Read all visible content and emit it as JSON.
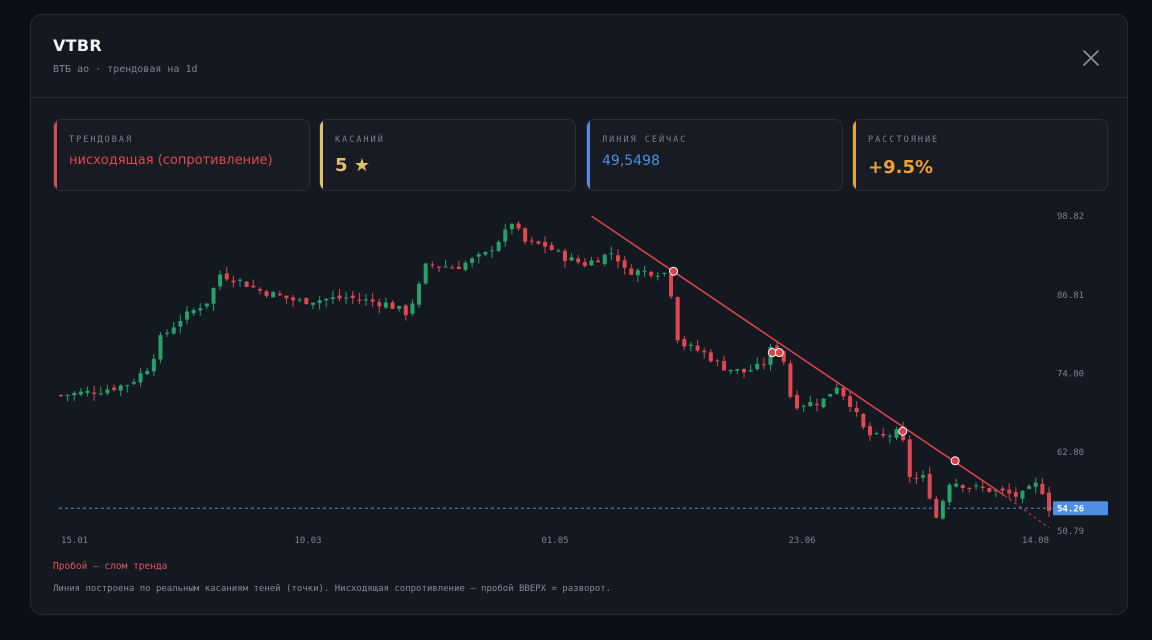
{
  "header": {
    "title": "VTBR",
    "subtitle": "ВТБ ао · трендовая на 1d"
  },
  "stats": [
    {
      "label": "ТРЕНДОВАЯ",
      "value": "нисходящая (сопротивление)",
      "color": "#e0484f"
    },
    {
      "label": "КАСАНИЙ",
      "value": "5",
      "icon": "star-icon",
      "color": "#e3c06c"
    },
    {
      "label": "ЛИНИЯ СЕЙЧАС",
      "value": "49,5498",
      "color": "#4f8fe6"
    },
    {
      "label": "РАССТОЯНИЕ",
      "value": "+9.5%",
      "color": "#f0a12c"
    }
  ],
  "chart_data": {
    "type": "candlestick",
    "y_ticks": [
      "98.82",
      "86.81",
      "74.80",
      "62.80",
      "50.79"
    ],
    "x_ticks": [
      "15.01",
      "10.03",
      "01.05",
      "23.06",
      "14.08"
    ],
    "ylim": [
      50.79,
      98.82
    ],
    "current_price": "54.26",
    "current_price_value": 54.26,
    "trendline": {
      "direction": "descending",
      "touch_points": [
        {
          "x": 0.62,
          "y": 90.4
        },
        {
          "x": 0.72,
          "y": 78.0
        },
        {
          "x": 0.727,
          "y": 78.0
        },
        {
          "x": 0.852,
          "y": 66.0
        },
        {
          "x": 0.905,
          "y": 61.5
        }
      ]
    },
    "colors": {
      "up": "#26a269",
      "down": "#e0484f",
      "line": "#d9434b",
      "price": "#4f8fe6"
    }
  },
  "legend": "Пробой — слом тренда",
  "note": "Линия построена по реальным касаниям теней (точки). Нисходящая сопротивление — пробой ВВЕРХ = разворот."
}
